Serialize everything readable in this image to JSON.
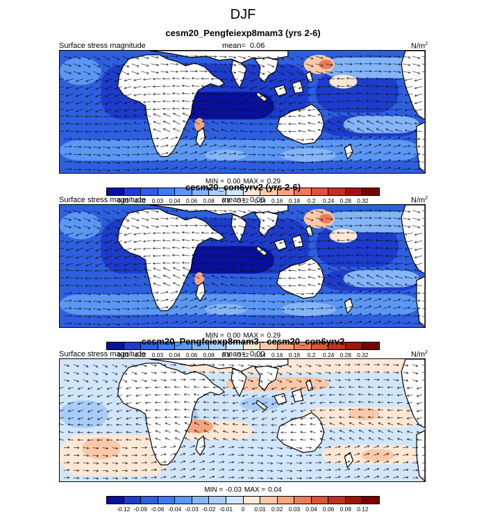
{
  "title": "DJF",
  "colors": {
    "land": "#ffffff",
    "coast": "#000000",
    "arrow": "#111111"
  },
  "panels": [
    {
      "id": "p1",
      "title": "cesm20_Pengfeiexp8mam3 (yrs 2-6)",
      "left_label": "Surface stress magnitude",
      "mean_label": "mean=",
      "mean_value": "0.06",
      "units": "N/m",
      "units_sup": "2",
      "minmax": {
        "min_label": "MIN =",
        "min": "0.00",
        "max_label": "MAX =",
        "max": "0.29"
      },
      "field": "magnitude",
      "colorbar": {
        "labels": [
          "0.01",
          "0.02",
          "0.03",
          "0.04",
          "0.06",
          "0.08",
          "0.1",
          "0.12",
          "0.14",
          "0.16",
          "0.18",
          "0.2",
          "0.24",
          "0.28",
          "0.32"
        ],
        "colors": [
          "#08109c",
          "#1d3ccc",
          "#2e5fe0",
          "#3d7bf0",
          "#5b97f5",
          "#84b5f8",
          "#a9cdfa",
          "#d2e6fb",
          "#fde8d6",
          "#fbc9a9",
          "#f6a47e",
          "#ec7c59",
          "#dc5537",
          "#c0311d",
          "#9c1508",
          "#7a0000"
        ]
      }
    },
    {
      "id": "p2",
      "title": "cesm20_con6yrv2 (yrs 2-6)",
      "left_label": "Surface stress magnitude",
      "mean_label": "mean=",
      "mean_value": "0.06",
      "units": "N/m",
      "units_sup": "2",
      "minmax": {
        "min_label": "MIN =",
        "min": "0.00",
        "max_label": "MAX =",
        "max": "0.29"
      },
      "field": "magnitude",
      "colorbar": {
        "labels": [
          "0.01",
          "0.02",
          "0.03",
          "0.04",
          "0.06",
          "0.08",
          "0.1",
          "0.12",
          "0.14",
          "0.16",
          "0.18",
          "0.2",
          "0.24",
          "0.28",
          "0.32"
        ],
        "colors": [
          "#08109c",
          "#1d3ccc",
          "#2e5fe0",
          "#3d7bf0",
          "#5b97f5",
          "#84b5f8",
          "#a9cdfa",
          "#d2e6fb",
          "#fde8d6",
          "#fbc9a9",
          "#f6a47e",
          "#ec7c59",
          "#dc5537",
          "#c0311d",
          "#9c1508",
          "#7a0000"
        ]
      }
    },
    {
      "id": "p3",
      "title": "cesm20_Pengfeiexp8mam3 - cesm20_con6yrv2",
      "left_label": "Surface stress magnitude",
      "mean_label": "mean=",
      "mean_value": "0.00",
      "units": "N/m",
      "units_sup": "2",
      "minmax": {
        "min_label": "MIN =",
        "min": "-0.03",
        "max_label": "MAX =",
        "max": "0.04"
      },
      "field": "difference",
      "colorbar": {
        "labels": [
          "-0.12",
          "-0.09",
          "-0.06",
          "-0.04",
          "-0.03",
          "-0.02",
          "-0.01",
          "0",
          "0.01",
          "0.02",
          "0.03",
          "0.04",
          "0.06",
          "0.09",
          "0.12"
        ],
        "colors": [
          "#08109c",
          "#1d3ccc",
          "#2e5fe0",
          "#3d7bf0",
          "#5b97f5",
          "#84b5f8",
          "#a9cdfa",
          "#d2e6fb",
          "#fde8d6",
          "#fbc9a9",
          "#f6a47e",
          "#ec7c59",
          "#dc5537",
          "#c0311d",
          "#9c1508",
          "#7a0000"
        ]
      }
    }
  ]
}
